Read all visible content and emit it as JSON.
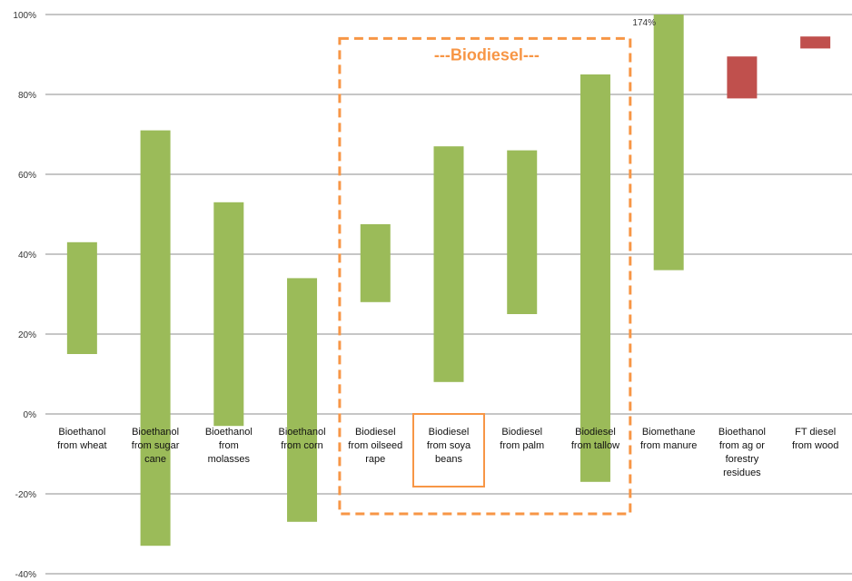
{
  "chart_data": {
    "type": "bar",
    "subtype": "floating-range",
    "ylim": [
      -40,
      100
    ],
    "yticks": [
      -40,
      -20,
      0,
      20,
      40,
      60,
      80,
      100
    ],
    "ytick_suffix": "%",
    "grid": true,
    "categories": [
      "Bioethanol from wheat",
      "Bioethanol from sugar cane",
      "Bioethanol from molasses",
      "Bioethanol from corn",
      "Biodiesel from oilseed rape",
      "Biodiesel from soya beans",
      "Biodiesel from palm",
      "Biodiesel from tallow",
      "Biomethane from manure",
      "Bioethanol from ag or forestry residues",
      "FT diesel from wood"
    ],
    "label_lines": [
      [
        "Bioethanol",
        "from wheat"
      ],
      [
        "Bioethanol",
        "from sugar",
        "cane"
      ],
      [
        "Bioethanol",
        "from",
        "molasses"
      ],
      [
        "Bioethanol",
        "from corn"
      ],
      [
        "Biodiesel",
        "from oilseed",
        "rape"
      ],
      [
        "Biodiesel",
        "from soya",
        "beans"
      ],
      [
        "Biodiesel",
        "from palm"
      ],
      [
        "Biodiesel",
        "from tallow"
      ],
      [
        "Biomethane",
        "from manure"
      ],
      [
        "Bioethanol",
        "from ag or",
        "forestry",
        "residues"
      ],
      [
        "FT diesel",
        "from wood"
      ]
    ],
    "ranges": [
      {
        "low": 15,
        "high": 43,
        "color": "#9bbb59"
      },
      {
        "low": -33,
        "high": 71,
        "color": "#9bbb59"
      },
      {
        "low": -3,
        "high": 53,
        "color": "#9bbb59"
      },
      {
        "low": -27,
        "high": 34,
        "color": "#9bbb59"
      },
      {
        "low": 28,
        "high": 47.5,
        "color": "#9bbb59"
      },
      {
        "low": 8,
        "high": 67,
        "color": "#9bbb59"
      },
      {
        "low": 25,
        "high": 66,
        "color": "#9bbb59"
      },
      {
        "low": -17,
        "high": 85,
        "color": "#9bbb59"
      },
      {
        "low": 36,
        "high": 174,
        "color": "#9bbb59"
      },
      {
        "low": 79,
        "high": 89.5,
        "color": "#c0504d"
      },
      {
        "low": 91.5,
        "high": 94.5,
        "color": "#c0504d"
      }
    ],
    "annotations": [
      {
        "text": "174%",
        "category_index": 8
      }
    ],
    "group": {
      "title": "---Biodiesel---",
      "first_index": 4,
      "last_index": 7,
      "highlight_index": 5,
      "y_bottom": -25,
      "y_top": 94
    },
    "colors": {
      "green": "#9bbb59",
      "red": "#c0504d",
      "highlight": "#f79646",
      "grid": "#8c8c8c"
    }
  }
}
